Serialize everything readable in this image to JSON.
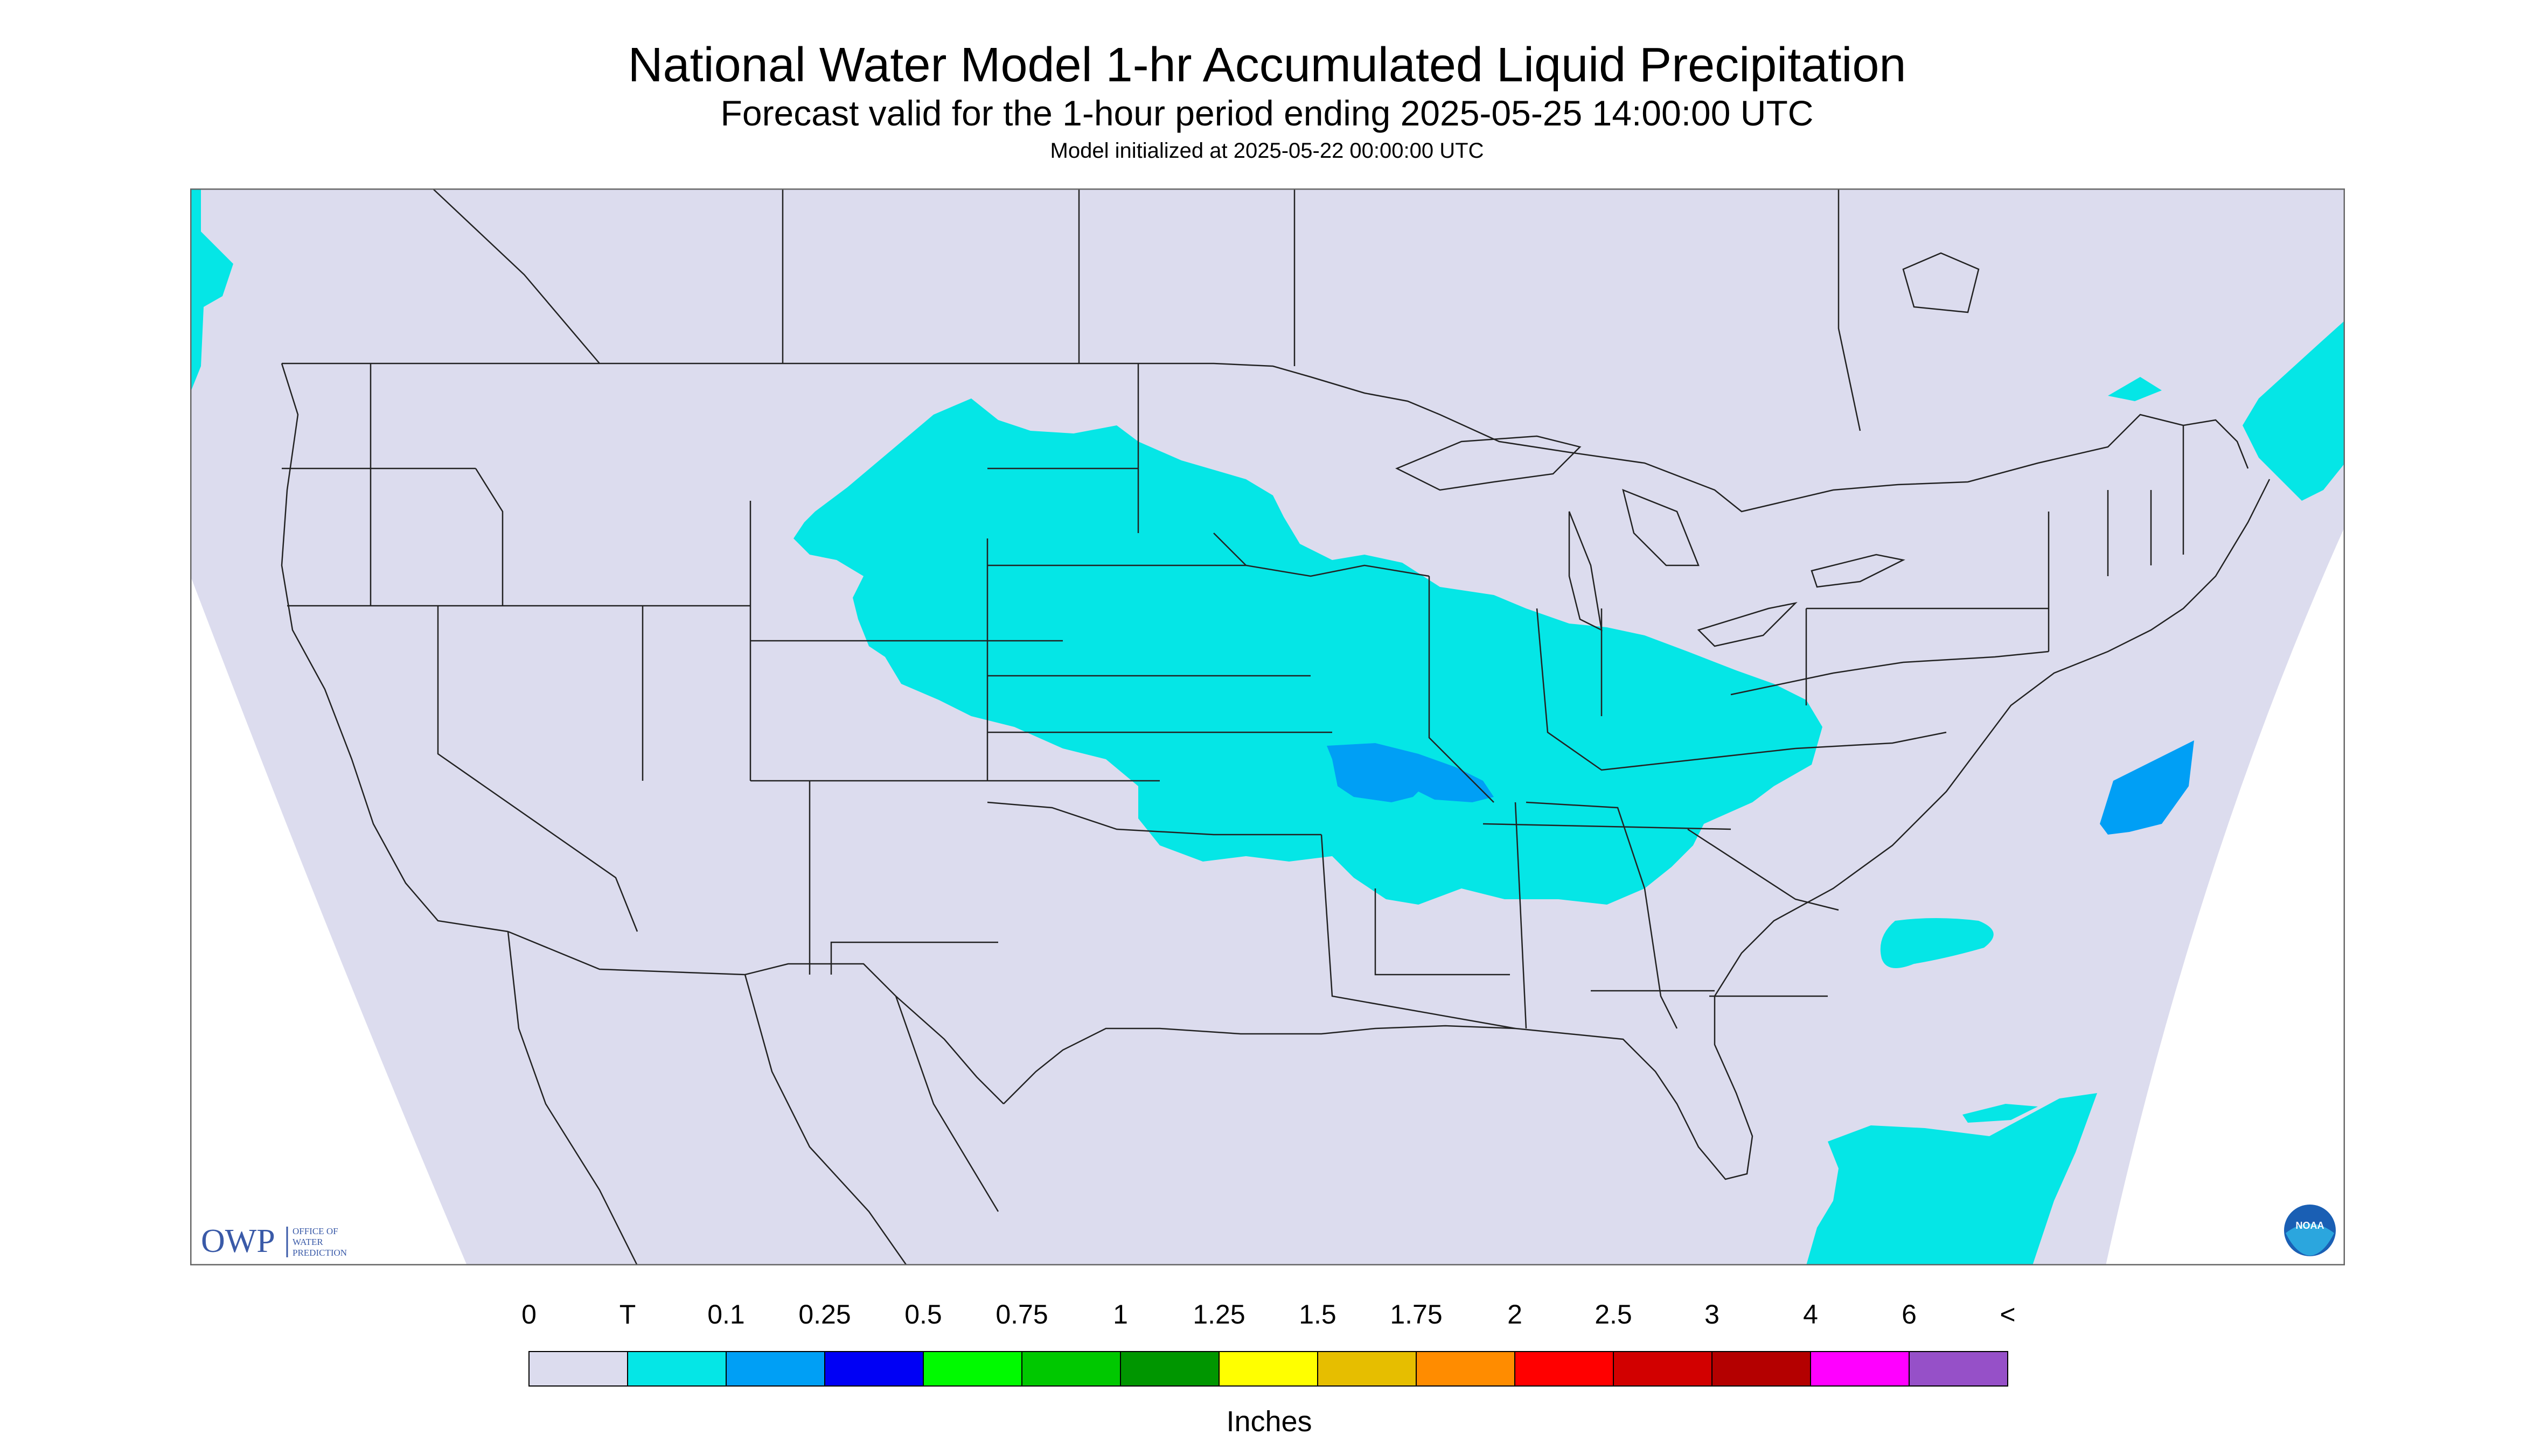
{
  "header": {
    "title": "National Water Model 1-hr Accumulated Liquid Precipitation",
    "subtitle": "Forecast valid for the 1-hour period ending 2025-05-25 14:00:00 UTC",
    "init": "Model initialized at 2025-05-22 00:00:00 UTC"
  },
  "map": {
    "background_color": "#dcdcee",
    "outside_color": "#ffffff",
    "boundary_color": "#222222",
    "precip_areas": [
      {
        "region": "Northern Plains to Ohio Valley",
        "category": "T",
        "color": "#05e6e6"
      },
      {
        "region": "Missouri / Arkansas",
        "category": "0.1",
        "color": "#009ff5"
      },
      {
        "region": "Atlantic offshore",
        "category": "T",
        "color": "#05e6e6"
      },
      {
        "region": "Gulf of Mexico / Cuba",
        "category": "T",
        "color": "#05e6e6"
      },
      {
        "region": "New England / Nova Scotia",
        "category": "T",
        "color": "#05e6e6"
      },
      {
        "region": "Pacific Northwest coast",
        "category": "T",
        "color": "#05e6e6"
      }
    ]
  },
  "logos": {
    "owp_text": "OWP",
    "owp_sub": [
      "OFFICE OF",
      "WATER",
      "PREDICTION"
    ],
    "noaa_text": "NOAA"
  },
  "legend": {
    "labels": [
      "0",
      "T",
      "0.1",
      "0.25",
      "0.5",
      "0.75",
      "1",
      "1.25",
      "1.5",
      "1.75",
      "2",
      "2.5",
      "3",
      "4",
      "6",
      "<"
    ],
    "colors": [
      "#dcdcee",
      "#05e6e6",
      "#009ff5",
      "#0000f5",
      "#00fa00",
      "#00c800",
      "#009600",
      "#ffff00",
      "#e6be00",
      "#ff8c00",
      "#ff0000",
      "#d20000",
      "#b40000",
      "#ff00ff",
      "#9650c8"
    ],
    "units": "Inches"
  }
}
